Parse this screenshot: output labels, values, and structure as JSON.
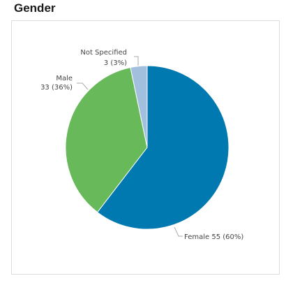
{
  "page": {
    "title": "Gender"
  },
  "chart_data": {
    "type": "pie",
    "title": "Gender",
    "slices": [
      {
        "category": "Female",
        "value": 55,
        "percent": 60,
        "color": "#0078b0"
      },
      {
        "category": "Male",
        "value": 33,
        "percent": 36,
        "color": "#68b95a"
      },
      {
        "category": "Not Specified",
        "value": 3,
        "percent": 3,
        "color": "#a2bfdd"
      }
    ],
    "labels": {
      "female": "Female 55 (60%)",
      "male_name": "Male",
      "male_value": "33 (36%)",
      "ns_name": "Not Specified",
      "ns_value": "3 (3%)"
    }
  }
}
